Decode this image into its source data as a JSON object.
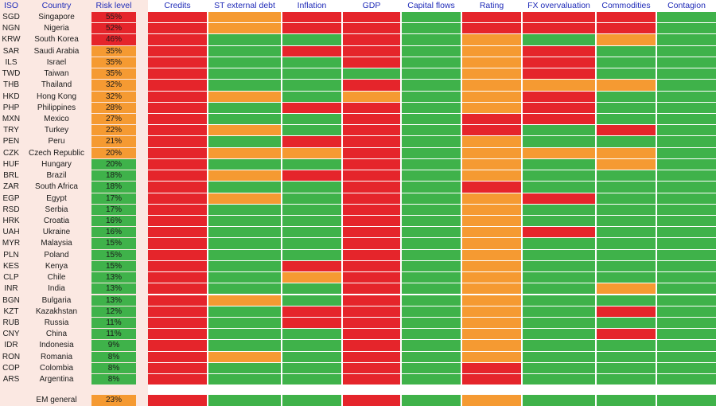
{
  "colors": {
    "red": "#e5252b",
    "orange": "#f59a32",
    "green": "#3fb24a",
    "left_bg": "#fbe8e2",
    "header_text": "#1f2bb8"
  },
  "chart_data": {
    "type": "table",
    "headers": {
      "iso": "ISO",
      "country": "Country",
      "risk": "Risk level",
      "factors": [
        "Credits",
        "ST external debt",
        "Inflation",
        "GDP",
        "Capital flows",
        "Rating",
        "FX overvaluation",
        "Commodities",
        "Contagion"
      ]
    },
    "rows": [
      {
        "iso": "SGD",
        "country": "Singapore",
        "risk": "55%",
        "risk_color": "R",
        "cells": "RORRGRRRG"
      },
      {
        "iso": "NGN",
        "country": "Nigeria",
        "risk": "52%",
        "risk_color": "R",
        "cells": "RORRGRRRG"
      },
      {
        "iso": "KRW",
        "country": "South Korea",
        "risk": "46%",
        "risk_color": "R",
        "cells": "RGGRGOGOG"
      },
      {
        "iso": "SAR",
        "country": "Saudi Arabia",
        "risk": "35%",
        "risk_color": "O",
        "cells": "RGRRGORGG"
      },
      {
        "iso": "ILS",
        "country": "Israel",
        "risk": "35%",
        "risk_color": "O",
        "cells": "RGGRGORGG"
      },
      {
        "iso": "TWD",
        "country": "Taiwan",
        "risk": "35%",
        "risk_color": "O",
        "cells": "RGGGGORGG"
      },
      {
        "iso": "THB",
        "country": "Thailand",
        "risk": "32%",
        "risk_color": "O",
        "cells": "RGGRGOOOG"
      },
      {
        "iso": "HKD",
        "country": "Hong Kong",
        "risk": "32%",
        "risk_color": "O",
        "cells": "ROGOGORGG"
      },
      {
        "iso": "PHP",
        "country": "Philippines",
        "risk": "28%",
        "risk_color": "O",
        "cells": "RGRRGORGG"
      },
      {
        "iso": "MXN",
        "country": "Mexico",
        "risk": "27%",
        "risk_color": "O",
        "cells": "RGGRGRRGG"
      },
      {
        "iso": "TRY",
        "country": "Turkey",
        "risk": "22%",
        "risk_color": "O",
        "cells": "ROGRGRGRG"
      },
      {
        "iso": "PEN",
        "country": "Peru",
        "risk": "21%",
        "risk_color": "O",
        "cells": "RGRRGOGGG"
      },
      {
        "iso": "CZK",
        "country": "Czech Republic",
        "risk": "20%",
        "risk_color": "O",
        "cells": "ROORGOOOG"
      },
      {
        "iso": "HUF",
        "country": "Hungary",
        "risk": "20%",
        "risk_color": "G",
        "cells": "RGGRGOGOG"
      },
      {
        "iso": "BRL",
        "country": "Brazil",
        "risk": "18%",
        "risk_color": "G",
        "cells": "RORRGOGGG"
      },
      {
        "iso": "ZAR",
        "country": "South Africa",
        "risk": "18%",
        "risk_color": "G",
        "cells": "RGGRGRGGG"
      },
      {
        "iso": "EGP",
        "country": "Egypt",
        "risk": "17%",
        "risk_color": "G",
        "cells": "ROGRGORGG"
      },
      {
        "iso": "RSD",
        "country": "Serbia",
        "risk": "17%",
        "risk_color": "G",
        "cells": "RGGRGOGGG"
      },
      {
        "iso": "HRK",
        "country": "Croatia",
        "risk": "16%",
        "risk_color": "G",
        "cells": "RGGRGOGGG"
      },
      {
        "iso": "UAH",
        "country": "Ukraine",
        "risk": "16%",
        "risk_color": "G",
        "cells": "RGGRGORGG"
      },
      {
        "iso": "MYR",
        "country": "Malaysia",
        "risk": "15%",
        "risk_color": "G",
        "cells": "RGGRGOGGG"
      },
      {
        "iso": "PLN",
        "country": "Poland",
        "risk": "15%",
        "risk_color": "G",
        "cells": "RGGRGOGGG"
      },
      {
        "iso": "KES",
        "country": "Kenya",
        "risk": "15%",
        "risk_color": "G",
        "cells": "RGRRGOGGG"
      },
      {
        "iso": "CLP",
        "country": "Chile",
        "risk": "13%",
        "risk_color": "G",
        "cells": "RGORGOGGG"
      },
      {
        "iso": "INR",
        "country": "India",
        "risk": "13%",
        "risk_color": "G",
        "cells": "RGGRGOGOG"
      },
      {
        "iso": "BGN",
        "country": "Bulgaria",
        "risk": "13%",
        "risk_color": "G",
        "cells": "ROGRGOGGG"
      },
      {
        "iso": "KZT",
        "country": "Kazakhstan",
        "risk": "12%",
        "risk_color": "G",
        "cells": "RGRRGOGRG"
      },
      {
        "iso": "RUB",
        "country": "Russia",
        "risk": "11%",
        "risk_color": "G",
        "cells": "RGRRGOGGG"
      },
      {
        "iso": "CNY",
        "country": "China",
        "risk": "11%",
        "risk_color": "G",
        "cells": "RGGRGOGRG"
      },
      {
        "iso": "IDR",
        "country": "Indonesia",
        "risk": "9%",
        "risk_color": "G",
        "cells": "RGGRGOGGG"
      },
      {
        "iso": "RON",
        "country": "Romania",
        "risk": "8%",
        "risk_color": "G",
        "cells": "ROGRGOGGG"
      },
      {
        "iso": "COP",
        "country": "Colombia",
        "risk": "8%",
        "risk_color": "G",
        "cells": "RGGRGRGGG"
      },
      {
        "iso": "ARS",
        "country": "Argentina",
        "risk": "8%",
        "risk_color": "G",
        "cells": "RGGRGRGGG"
      }
    ],
    "summary": {
      "iso": "",
      "country": "EM general",
      "risk": "23%",
      "risk_color": "O",
      "cells": "RGGRGOGGG"
    }
  }
}
